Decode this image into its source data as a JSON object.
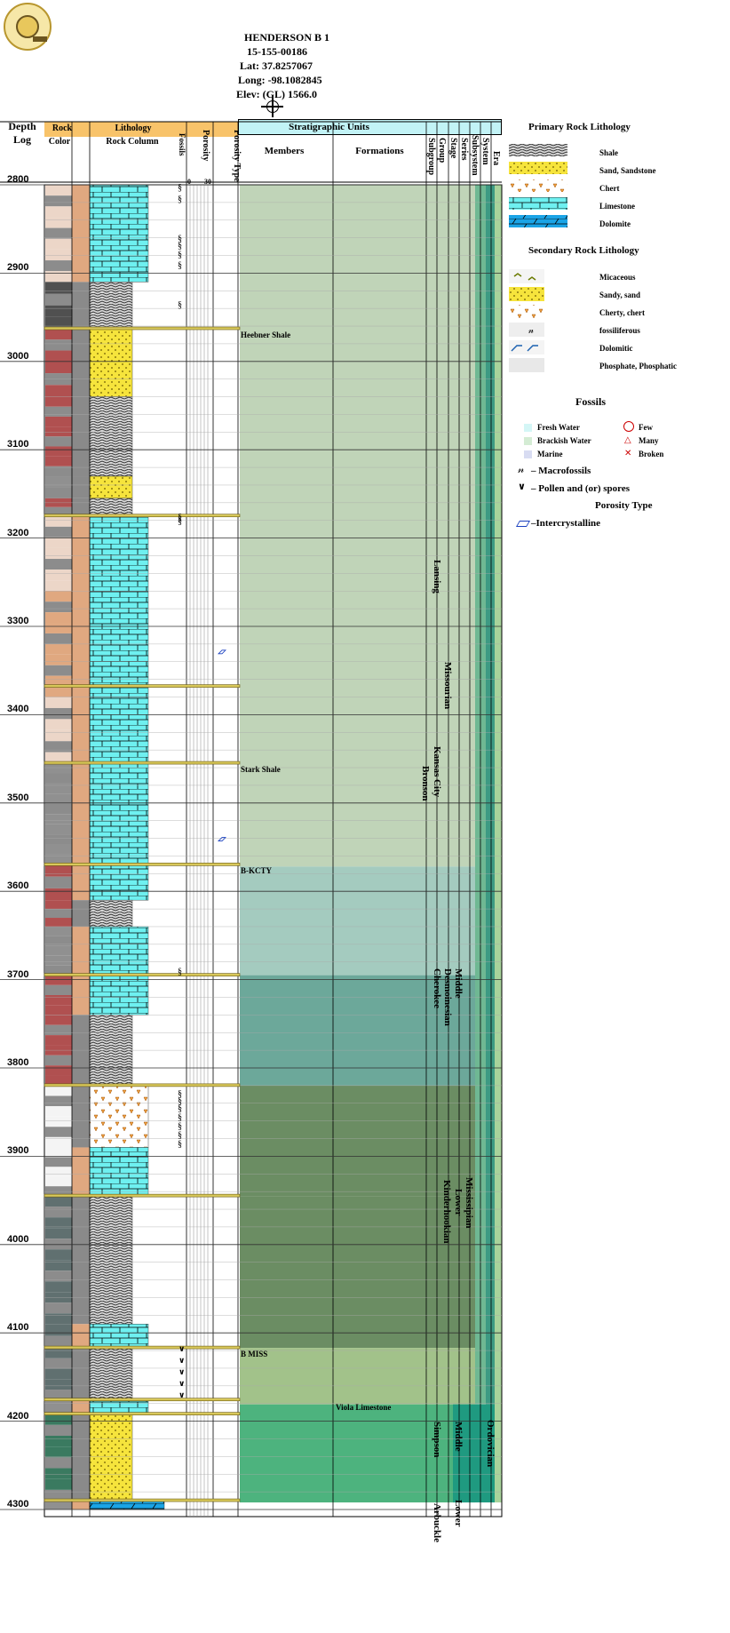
{
  "header": {
    "well_name": "HENDERSON B 1",
    "api": "15-155-00186",
    "lat": "Lat: 37.8257067",
    "long": "Long: -98.1082845",
    "elev": "Elev: (GL) 1566.0"
  },
  "columns": {
    "depth": "Depth",
    "log": "Log",
    "rock": "Rock",
    "color": "Color",
    "lithology": "Lithology",
    "rock_column": "Rock Column",
    "fossils": "Fossils",
    "porosity": "Porosity",
    "porosity_scale_min": "0",
    "porosity_scale_max": "30",
    "porosity_type": "Porosity Type",
    "strat_units": "Stratigraphic Units",
    "members": "Members",
    "formations": "Formations",
    "subgroup": "Subgroup",
    "group": "Group",
    "stage": "Stage",
    "series": "Series",
    "subsystem": "Subsystem",
    "system": "System",
    "era": "Era"
  },
  "depth_range": [
    2800,
    4300
  ],
  "depth_ticks": [
    "2800",
    "2900",
    "3000",
    "3100",
    "3200",
    "3300",
    "3400",
    "3500",
    "3600",
    "3700",
    "3800",
    "3900",
    "4000",
    "4100",
    "4200",
    "4300"
  ],
  "members": [
    {
      "label": "Heebner Shale",
      "top": 2963
    },
    {
      "label": "Stark Shale",
      "top": 3455
    },
    {
      "label": "B-KCTY",
      "top": 3570
    },
    {
      "label": "B MISS",
      "top": 4117
    }
  ],
  "formations": [
    {
      "label": "Viola Limestone",
      "top": 4181
    }
  ],
  "units": {
    "subgroup": [
      "Lansing",
      "Kansas City",
      "Bronson"
    ],
    "group": [
      "Cherokee",
      "Kinderhookian",
      "Simpson",
      "Arbuckle"
    ],
    "stage": [
      "Missourian",
      "Desmoinesian"
    ],
    "series": [
      "Middle",
      "Lower",
      "Middle",
      "Lower"
    ],
    "subsystem": [
      "Mississipian"
    ],
    "system": [
      "Ordovician"
    ]
  },
  "strat_colors": [
    {
      "from": 2800,
      "to": 3572,
      "color": "#c0d4b8"
    },
    {
      "from": 3572,
      "to": 3695,
      "color": "#a4cbbf"
    },
    {
      "from": 3695,
      "to": 3820,
      "color": "#6ca89a"
    },
    {
      "from": 3820,
      "to": 3945,
      "color": "#6b8d63"
    },
    {
      "from": 3945,
      "to": 4117,
      "color": "#6b8d63"
    },
    {
      "from": 4117,
      "to": 4181,
      "color": "#a2c28a"
    },
    {
      "from": 4181,
      "to": 4292,
      "color": "#4db37e"
    }
  ],
  "legend": {
    "primary_title": "Primary Rock Lithology",
    "primary": [
      "Shale",
      "Sand, Sandstone",
      "Chert",
      "Limestone",
      "Dolomite"
    ],
    "secondary_title": "Secondary Rock Lithology",
    "secondary": [
      "Micaceous",
      "Sandy, sand",
      "Cherty, chert",
      "fossiliferous",
      "Dolomitic",
      "Phosphate, Phosphatic"
    ],
    "fossils_title": "Fossils",
    "water": [
      "Fresh Water",
      "Brackish Water",
      "Marine"
    ],
    "abundance": [
      "Few",
      "Many",
      "Broken"
    ],
    "macro": "– Macrofossils",
    "pollen": "– Pollen and (or) spores",
    "porosity_title": "Porosity Type",
    "porosity_types": [
      "–Intercrystalline"
    ]
  },
  "colors": {
    "header_orange": "#f8c36a",
    "header_cyan": "#c2f3f6",
    "limestone": "#6ef0f0",
    "dolomite": "#1aa4e6",
    "sand": "#f6e43c",
    "chert": "#f0a040",
    "formation_line": "#8a7a20"
  }
}
